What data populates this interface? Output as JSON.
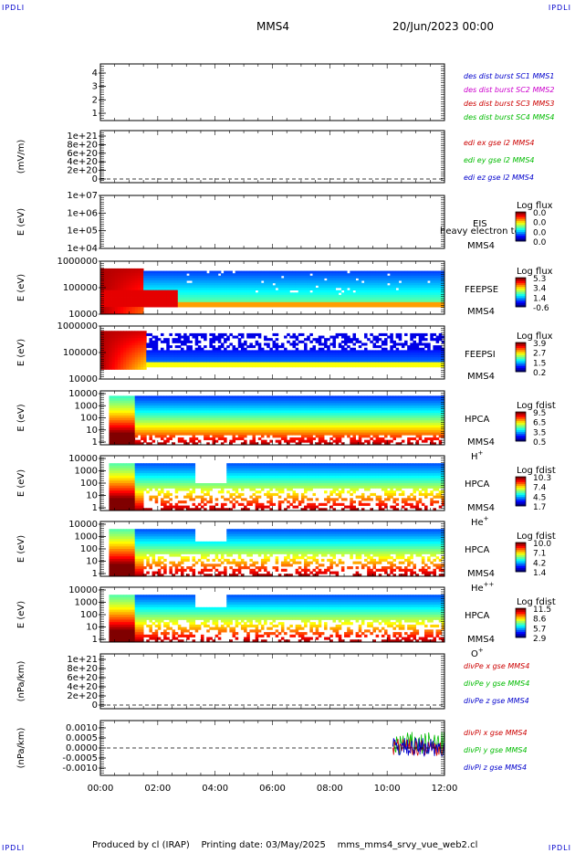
{
  "corner_label": "IPDLI",
  "header": {
    "spacecraft": "MMS4",
    "date": "20/Jun/2023 00:00"
  },
  "footer": {
    "produced_by": "Produced by cl (IRAP)",
    "printing_date": "Printing date: 03/May/2025",
    "script": "mms_mms4_srvy_vue_web2.cl"
  },
  "colors": {
    "red": "#cc0000",
    "green": "#00bb00",
    "blue": "#0000cc",
    "magenta": "#cc00cc"
  },
  "chart_data": [
    {
      "type": "line",
      "id": "panel1",
      "yticks": [
        "1",
        "2",
        "3",
        "4"
      ],
      "ylim": [
        0.6,
        4.3
      ],
      "legend": [
        {
          "text": "des dist burst SC1 MMS1",
          "color": "#0000cc"
        },
        {
          "text": "des dist burst SC2 MMS2",
          "color": "#cc00cc"
        },
        {
          "text": "des dist burst SC3 MMS3",
          "color": "#cc0000"
        },
        {
          "text": "des dist burst SC4 MMS4",
          "color": "#00bb00"
        }
      ]
    },
    {
      "type": "line",
      "id": "panel2",
      "ylabel": "(mV/m)",
      "yticks": [
        "0",
        "2e+20",
        "4e+20",
        "6e+20",
        "8e+20",
        "1e+21"
      ],
      "legend": [
        {
          "text": "edi ex gse l2 MMS4",
          "color": "#cc0000"
        },
        {
          "text": "edi ey gse l2 MMS4",
          "color": "#00bb00"
        },
        {
          "text": "edi ez gse l2 MMS4",
          "color": "#0000cc"
        }
      ]
    },
    {
      "type": "heatmap",
      "id": "panel3",
      "ylabel": "E (eV)",
      "yticks": [
        "1e+04",
        "1e+05",
        "1e+06",
        "1e+07"
      ],
      "right_labels": [
        "EIS",
        "MMS4"
      ],
      "overlay_text": "heavy electron to",
      "colorbar": {
        "title": "Log flux",
        "ticks": [
          "0.0",
          "0.0",
          "0.0",
          "0.0"
        ]
      }
    },
    {
      "type": "heatmap",
      "id": "panel4",
      "ylabel": "E (eV)",
      "yticks": [
        "10000",
        "100000",
        "1000000"
      ],
      "right_labels": [
        "FEEPSE",
        "MMS4"
      ],
      "colorbar": {
        "title": "Log flux",
        "ticks": [
          "5.3",
          "3.4",
          "1.4",
          "-0.6"
        ]
      }
    },
    {
      "type": "heatmap",
      "id": "panel5",
      "ylabel": "E (eV)",
      "yticks": [
        "10000",
        "100000",
        "1000000"
      ],
      "right_labels": [
        "FEEPSI",
        "MMS4"
      ],
      "colorbar": {
        "title": "Log flux",
        "ticks": [
          "3.9",
          "2.7",
          "1.5",
          "0.2"
        ]
      }
    },
    {
      "type": "heatmap",
      "id": "panel6",
      "ylabel": "E (eV)",
      "yticks": [
        "1",
        "10",
        "100",
        "1000",
        "10000"
      ],
      "right_labels": [
        "HPCA",
        "MMS4"
      ],
      "species": "H",
      "species_sup": "+",
      "colorbar": {
        "title": "Log fdist",
        "ticks": [
          "9.5",
          "6.5",
          "3.5",
          "0.5"
        ]
      }
    },
    {
      "type": "heatmap",
      "id": "panel7",
      "ylabel": "E (eV)",
      "yticks": [
        "1",
        "10",
        "100",
        "1000",
        "10000"
      ],
      "right_labels": [
        "HPCA",
        "MMS4"
      ],
      "species": "He",
      "species_sup": "+",
      "colorbar": {
        "title": "Log fdist",
        "ticks": [
          "10.3",
          "7.4",
          "4.5",
          "1.7"
        ]
      }
    },
    {
      "type": "heatmap",
      "id": "panel8",
      "ylabel": "E (eV)",
      "yticks": [
        "1",
        "10",
        "100",
        "1000",
        "10000"
      ],
      "right_labels": [
        "HPCA",
        "MMS4"
      ],
      "species": "He",
      "species_sup": "++",
      "colorbar": {
        "title": "Log fdist",
        "ticks": [
          "10.0",
          "7.1",
          "4.2",
          "1.4"
        ]
      }
    },
    {
      "type": "heatmap",
      "id": "panel9",
      "ylabel": "E (eV)",
      "yticks": [
        "1",
        "10",
        "100",
        "1000",
        "10000"
      ],
      "right_labels": [
        "HPCA",
        "MMS4"
      ],
      "species": "O",
      "species_sup": "+",
      "colorbar": {
        "title": "Log fdist",
        "ticks": [
          "11.5",
          "8.6",
          "5.7",
          "2.9"
        ]
      }
    },
    {
      "type": "line",
      "id": "panel10",
      "ylabel": "(nPa/km)",
      "yticks": [
        "0",
        "2e+20",
        "4e+20",
        "6e+20",
        "8e+20",
        "1e+21"
      ],
      "legend": [
        {
          "text": "divPe x gse MMS4",
          "color": "#cc0000"
        },
        {
          "text": "divPe y gse MMS4",
          "color": "#00bb00"
        },
        {
          "text": "divPe z gse MMS4",
          "color": "#0000cc"
        }
      ]
    },
    {
      "type": "line",
      "id": "panel11",
      "ylabel": "(nPa/km)",
      "yticks": [
        "-0.0010",
        "-0.0005",
        "0.0000",
        "0.0005",
        "0.0010"
      ],
      "ylim": [
        -0.0014,
        0.0014
      ],
      "x_data_start": "10:12",
      "x_data_end": "12:00",
      "legend": [
        {
          "text": "divPi x gse MMS4",
          "color": "#cc0000"
        },
        {
          "text": "divPi y gse MMS4",
          "color": "#00bb00"
        },
        {
          "text": "divPi z gse MMS4",
          "color": "#0000cc"
        }
      ]
    }
  ],
  "xaxis": {
    "ticks": [
      "00:00",
      "02:00",
      "04:00",
      "06:00",
      "08:00",
      "10:00",
      "12:00"
    ],
    "range_hours": [
      0,
      12
    ]
  }
}
